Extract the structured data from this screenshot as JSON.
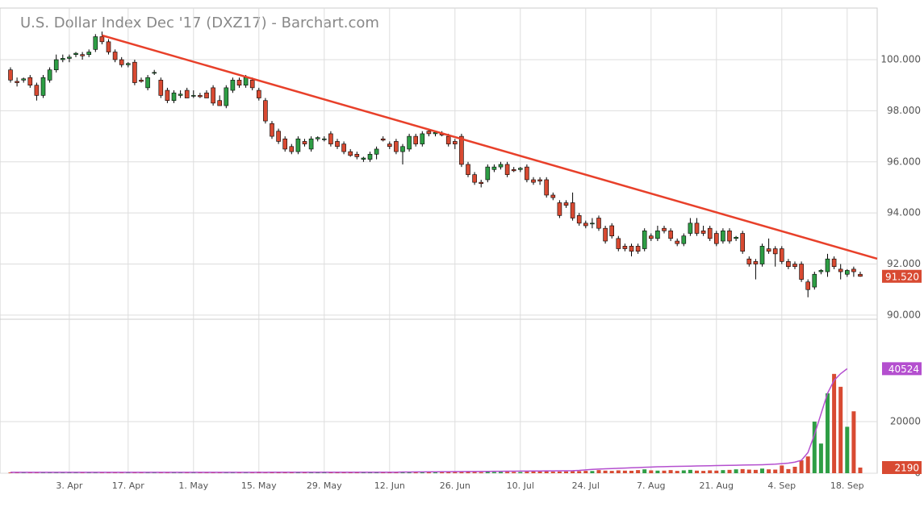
{
  "chart_data": [
    {
      "type": "candlestick",
      "title": "U.S. Dollar Index Dec '17 (DXZ17) - Barchart.com",
      "categories": [
        null,
        null,
        null,
        null,
        null,
        null,
        null,
        null,
        null,
        "3. Apr",
        null,
        null,
        null,
        null,
        null,
        null,
        null,
        null,
        "17. Apr",
        null,
        null,
        null,
        null,
        null,
        null,
        null,
        null,
        null,
        "1. May",
        null,
        null,
        null,
        null,
        null,
        null,
        null,
        null,
        null,
        "15. May",
        null,
        null,
        null,
        null,
        null,
        null,
        null,
        null,
        null,
        "29. May",
        null,
        null,
        null,
        null,
        null,
        null,
        null,
        null,
        null,
        "12. Jun",
        null,
        null,
        null,
        null,
        null,
        null,
        null,
        null,
        null,
        "26. Jun",
        null,
        null,
        null,
        null,
        null,
        null,
        null,
        null,
        null,
        "10. Jul",
        null,
        null,
        null,
        null,
        null,
        null,
        null,
        null,
        null,
        "24. Jul",
        null,
        null,
        null,
        null,
        null,
        null,
        null,
        null,
        null,
        "7. Aug",
        null,
        null,
        null,
        null,
        null,
        null,
        null,
        null,
        null,
        "21. Aug",
        null,
        null,
        null,
        null,
        null,
        null,
        null,
        null,
        null,
        "4. Sep",
        null,
        null,
        null,
        null,
        null,
        null,
        null,
        null,
        null,
        "18. Sep",
        null,
        null
      ],
      "open": [
        99.6,
        99.15,
        99.2,
        99.3,
        99.0,
        98.6,
        99.2,
        99.6,
        100.0,
        100.05,
        100.2,
        100.2,
        100.2,
        100.4,
        100.9,
        100.7,
        100.3,
        100.0,
        99.8,
        99.9,
        99.2,
        98.9,
        99.5,
        99.2,
        98.8,
        98.4,
        98.6,
        98.8,
        98.6,
        98.6,
        98.7,
        98.9,
        98.4,
        98.2,
        98.8,
        99.2,
        99.0,
        99.2,
        98.8,
        98.4,
        97.5,
        97.2,
        96.9,
        96.6,
        96.4,
        96.8,
        96.5,
        96.9,
        96.9,
        97.1,
        96.8,
        96.7,
        96.4,
        96.3,
        96.1,
        96.1,
        96.3,
        96.9,
        96.7,
        96.8,
        96.4,
        96.5,
        97.0,
        96.7,
        97.2,
        97.1,
        97.1,
        97.0,
        96.8,
        97.0,
        95.9,
        95.5,
        95.2,
        95.3,
        95.7,
        95.8,
        95.9,
        95.7,
        95.7,
        95.8,
        95.3,
        95.3,
        95.3,
        94.7,
        94.4,
        94.4,
        94.4,
        93.9,
        93.6,
        93.6,
        93.8,
        93.4,
        93.5,
        93.0,
        92.7,
        92.7,
        92.7,
        92.6,
        93.1,
        93.0,
        93.4,
        93.3,
        92.9,
        92.8,
        93.2,
        93.6,
        93.3,
        93.4,
        93.2,
        92.9,
        93.3,
        93.0,
        93.2,
        92.2,
        92.1,
        92.0,
        92.6,
        92.6,
        92.6,
        92.1,
        92.0,
        92.0,
        91.3,
        91.1,
        91.7,
        91.7,
        92.2,
        91.8,
        91.6,
        91.8,
        91.6
      ],
      "high": [
        99.7,
        99.3,
        99.3,
        99.4,
        99.1,
        99.4,
        99.7,
        100.2,
        100.2,
        100.2,
        100.3,
        100.3,
        100.4,
        101.0,
        101.1,
        100.8,
        100.4,
        100.1,
        99.9,
        100.0,
        99.3,
        99.4,
        99.6,
        99.3,
        98.9,
        98.8,
        98.8,
        98.9,
        98.8,
        98.7,
        98.8,
        99.0,
        98.6,
        99.0,
        99.3,
        99.3,
        99.4,
        99.3,
        98.9,
        98.5,
        97.6,
        97.3,
        97.0,
        96.7,
        97.0,
        96.9,
        97.0,
        97.0,
        97.0,
        97.2,
        96.9,
        96.8,
        96.5,
        96.4,
        96.2,
        96.4,
        96.6,
        97.0,
        96.8,
        96.9,
        96.7,
        97.1,
        97.1,
        97.2,
        97.3,
        97.2,
        97.2,
        97.1,
        96.9,
        97.1,
        96.0,
        95.6,
        95.3,
        95.9,
        95.9,
        96.0,
        96.0,
        95.8,
        95.8,
        95.9,
        95.4,
        95.4,
        95.4,
        94.8,
        94.5,
        94.5,
        94.8,
        94.0,
        93.7,
        93.8,
        93.9,
        93.5,
        93.6,
        93.1,
        92.8,
        92.8,
        92.8,
        93.4,
        93.2,
        93.5,
        93.5,
        93.4,
        93.0,
        93.2,
        93.8,
        93.8,
        93.5,
        93.5,
        93.3,
        93.4,
        93.4,
        93.1,
        93.3,
        92.3,
        92.2,
        92.8,
        93.0,
        92.7,
        92.7,
        92.2,
        92.1,
        92.1,
        91.4,
        91.7,
        91.8,
        92.4,
        92.3,
        92.0,
        91.8,
        91.9,
        91.7
      ],
      "low": [
        99.1,
        98.95,
        99.1,
        98.9,
        98.4,
        98.5,
        99.1,
        99.5,
        99.9,
        99.9,
        100.1,
        100.0,
        100.1,
        100.3,
        100.6,
        100.2,
        99.9,
        99.7,
        99.7,
        99.0,
        99.1,
        98.8,
        99.4,
        98.5,
        98.3,
        98.3,
        98.5,
        98.5,
        98.5,
        98.5,
        98.5,
        98.2,
        98.2,
        98.1,
        98.7,
        98.9,
        98.9,
        98.8,
        98.4,
        97.5,
        96.9,
        96.7,
        96.4,
        96.3,
        96.3,
        96.6,
        96.4,
        96.8,
        96.8,
        96.6,
        96.5,
        96.3,
        96.2,
        96.1,
        96.0,
        96.0,
        96.1,
        96.8,
        96.5,
        96.3,
        95.9,
        96.4,
        96.6,
        96.6,
        97.0,
        97.0,
        97.0,
        96.6,
        96.5,
        95.8,
        95.4,
        95.1,
        95.0,
        95.2,
        95.6,
        95.7,
        95.4,
        95.6,
        95.6,
        95.2,
        95.1,
        95.1,
        94.6,
        94.5,
        93.8,
        94.2,
        93.7,
        93.5,
        93.4,
        93.4,
        93.3,
        92.8,
        93.0,
        92.5,
        92.5,
        92.3,
        92.4,
        92.5,
        92.9,
        92.9,
        93.2,
        92.9,
        92.7,
        92.7,
        93.1,
        93.1,
        93.1,
        92.9,
        92.7,
        92.8,
        92.8,
        92.9,
        92.4,
        91.9,
        91.4,
        91.9,
        92.4,
        91.9,
        92.0,
        91.8,
        91.8,
        91.3,
        90.7,
        91.0,
        91.6,
        91.5,
        91.8,
        91.4,
        91.5,
        91.5,
        91.5
      ],
      "close": [
        99.2,
        99.1,
        99.25,
        99.0,
        98.6,
        99.3,
        99.6,
        100.0,
        100.05,
        100.1,
        100.25,
        100.15,
        100.3,
        100.9,
        100.7,
        100.3,
        100.0,
        99.8,
        99.85,
        99.1,
        99.15,
        99.3,
        99.5,
        98.6,
        98.4,
        98.7,
        98.65,
        98.5,
        98.6,
        98.55,
        98.5,
        98.3,
        98.2,
        98.9,
        99.2,
        99.0,
        99.3,
        98.9,
        98.5,
        97.6,
        97.0,
        96.8,
        96.5,
        96.4,
        96.9,
        96.7,
        96.9,
        96.95,
        96.9,
        96.7,
        96.6,
        96.4,
        96.25,
        96.2,
        96.15,
        96.3,
        96.5,
        96.85,
        96.6,
        96.4,
        96.6,
        97.0,
        96.7,
        97.1,
        97.1,
        97.15,
        97.05,
        96.7,
        96.7,
        95.9,
        95.5,
        95.2,
        95.15,
        95.8,
        95.8,
        95.9,
        95.5,
        95.65,
        95.75,
        95.3,
        95.2,
        95.25,
        94.7,
        94.6,
        93.9,
        94.3,
        93.8,
        93.6,
        93.5,
        93.6,
        93.4,
        92.9,
        93.1,
        92.6,
        92.6,
        92.5,
        92.5,
        93.3,
        93.0,
        93.3,
        93.3,
        93.0,
        92.8,
        93.1,
        93.6,
        93.2,
        93.2,
        93.0,
        92.8,
        93.3,
        92.9,
        93.05,
        92.5,
        92.0,
        92.0,
        92.7,
        92.5,
        92.4,
        92.1,
        91.9,
        91.9,
        91.4,
        91.0,
        91.6,
        91.75,
        92.2,
        91.9,
        91.7,
        91.75,
        91.7,
        91.52
      ],
      "last_close_label": "91.520",
      "ylim": [
        89.84,
        102.02
      ],
      "yticks": [
        {
          "value": 90,
          "label": "90.000"
        },
        {
          "value": 92,
          "label": "92.000"
        },
        {
          "value": 94,
          "label": "94.000"
        },
        {
          "value": 96,
          "label": "96.000"
        },
        {
          "value": 98,
          "label": "98.000"
        },
        {
          "value": 100,
          "label": "100.000"
        }
      ],
      "grid": true,
      "up_color": "#2e9e45",
      "down_color": "#d84a32",
      "trendline": {
        "x": [
          14,
          132.6
        ],
        "values": [
          100.95,
          92.21
        ],
        "color": "#e8402a"
      }
    },
    {
      "type": "volume_bar",
      "values": [
        300,
        250,
        280,
        320,
        400,
        350,
        300,
        280,
        260,
        300,
        250,
        300,
        280,
        350,
        400,
        300,
        280,
        260,
        300,
        320,
        280,
        300,
        260,
        350,
        300,
        280,
        260,
        300,
        280,
        250,
        300,
        350,
        280,
        300,
        320,
        280,
        300,
        350,
        600,
        400,
        350,
        300,
        280,
        320,
        300,
        280,
        300,
        320,
        280,
        300,
        350,
        300,
        320,
        300,
        280,
        300,
        320,
        350,
        300,
        400,
        500,
        450,
        400,
        500,
        450,
        400,
        450,
        500,
        450,
        600,
        500,
        450,
        400,
        500,
        450,
        500,
        550,
        500,
        450,
        600,
        700,
        650,
        800,
        600,
        650,
        700,
        750,
        800,
        900,
        850,
        1200,
        1000,
        900,
        1100,
        1000,
        950,
        1200,
        1500,
        1100,
        1000,
        1000,
        1200,
        900,
        1100,
        1300,
        1000,
        900,
        1100,
        1000,
        1200,
        1300,
        1500,
        1600,
        1400,
        1300,
        1800,
        1500,
        1400,
        3000,
        1600,
        2500,
        5000,
        6500,
        20000,
        11500,
        31000,
        38500,
        33500,
        18000,
        24000,
        2190
      ],
      "average": {
        "color": "#b44fcf",
        "values": [
          350,
          350,
          350,
          350,
          350,
          350,
          350,
          350,
          350,
          350,
          350,
          350,
          350,
          350,
          350,
          350,
          350,
          350,
          350,
          350,
          350,
          350,
          350,
          350,
          350,
          350,
          350,
          350,
          350,
          350,
          360,
          360,
          360,
          360,
          360,
          360,
          360,
          360,
          360,
          360,
          380,
          380,
          380,
          380,
          380,
          380,
          380,
          380,
          380,
          380,
          400,
          400,
          400,
          400,
          400,
          400,
          400,
          400,
          400,
          400,
          450,
          470,
          490,
          510,
          530,
          550,
          570,
          590,
          610,
          630,
          650,
          670,
          690,
          710,
          730,
          750,
          770,
          790,
          810,
          830,
          850,
          870,
          890,
          910,
          930,
          950,
          980,
          1100,
          1300,
          1500,
          1600,
          1700,
          1800,
          1900,
          2000,
          2100,
          2200,
          2300,
          2400,
          2500,
          2550,
          2600,
          2650,
          2700,
          2750,
          2800,
          2850,
          2900,
          2950,
          3000,
          3050,
          3100,
          3150,
          3200,
          3250,
          3300,
          3400,
          3500,
          3700,
          3900,
          4300,
          5000,
          8000,
          15000,
          23000,
          31000,
          36000,
          38600,
          40524,
          null,
          null
        ]
      },
      "ylim": [
        0,
        59700
      ],
      "yticks": [
        0,
        20000
      ],
      "grid": true
    }
  ]
}
